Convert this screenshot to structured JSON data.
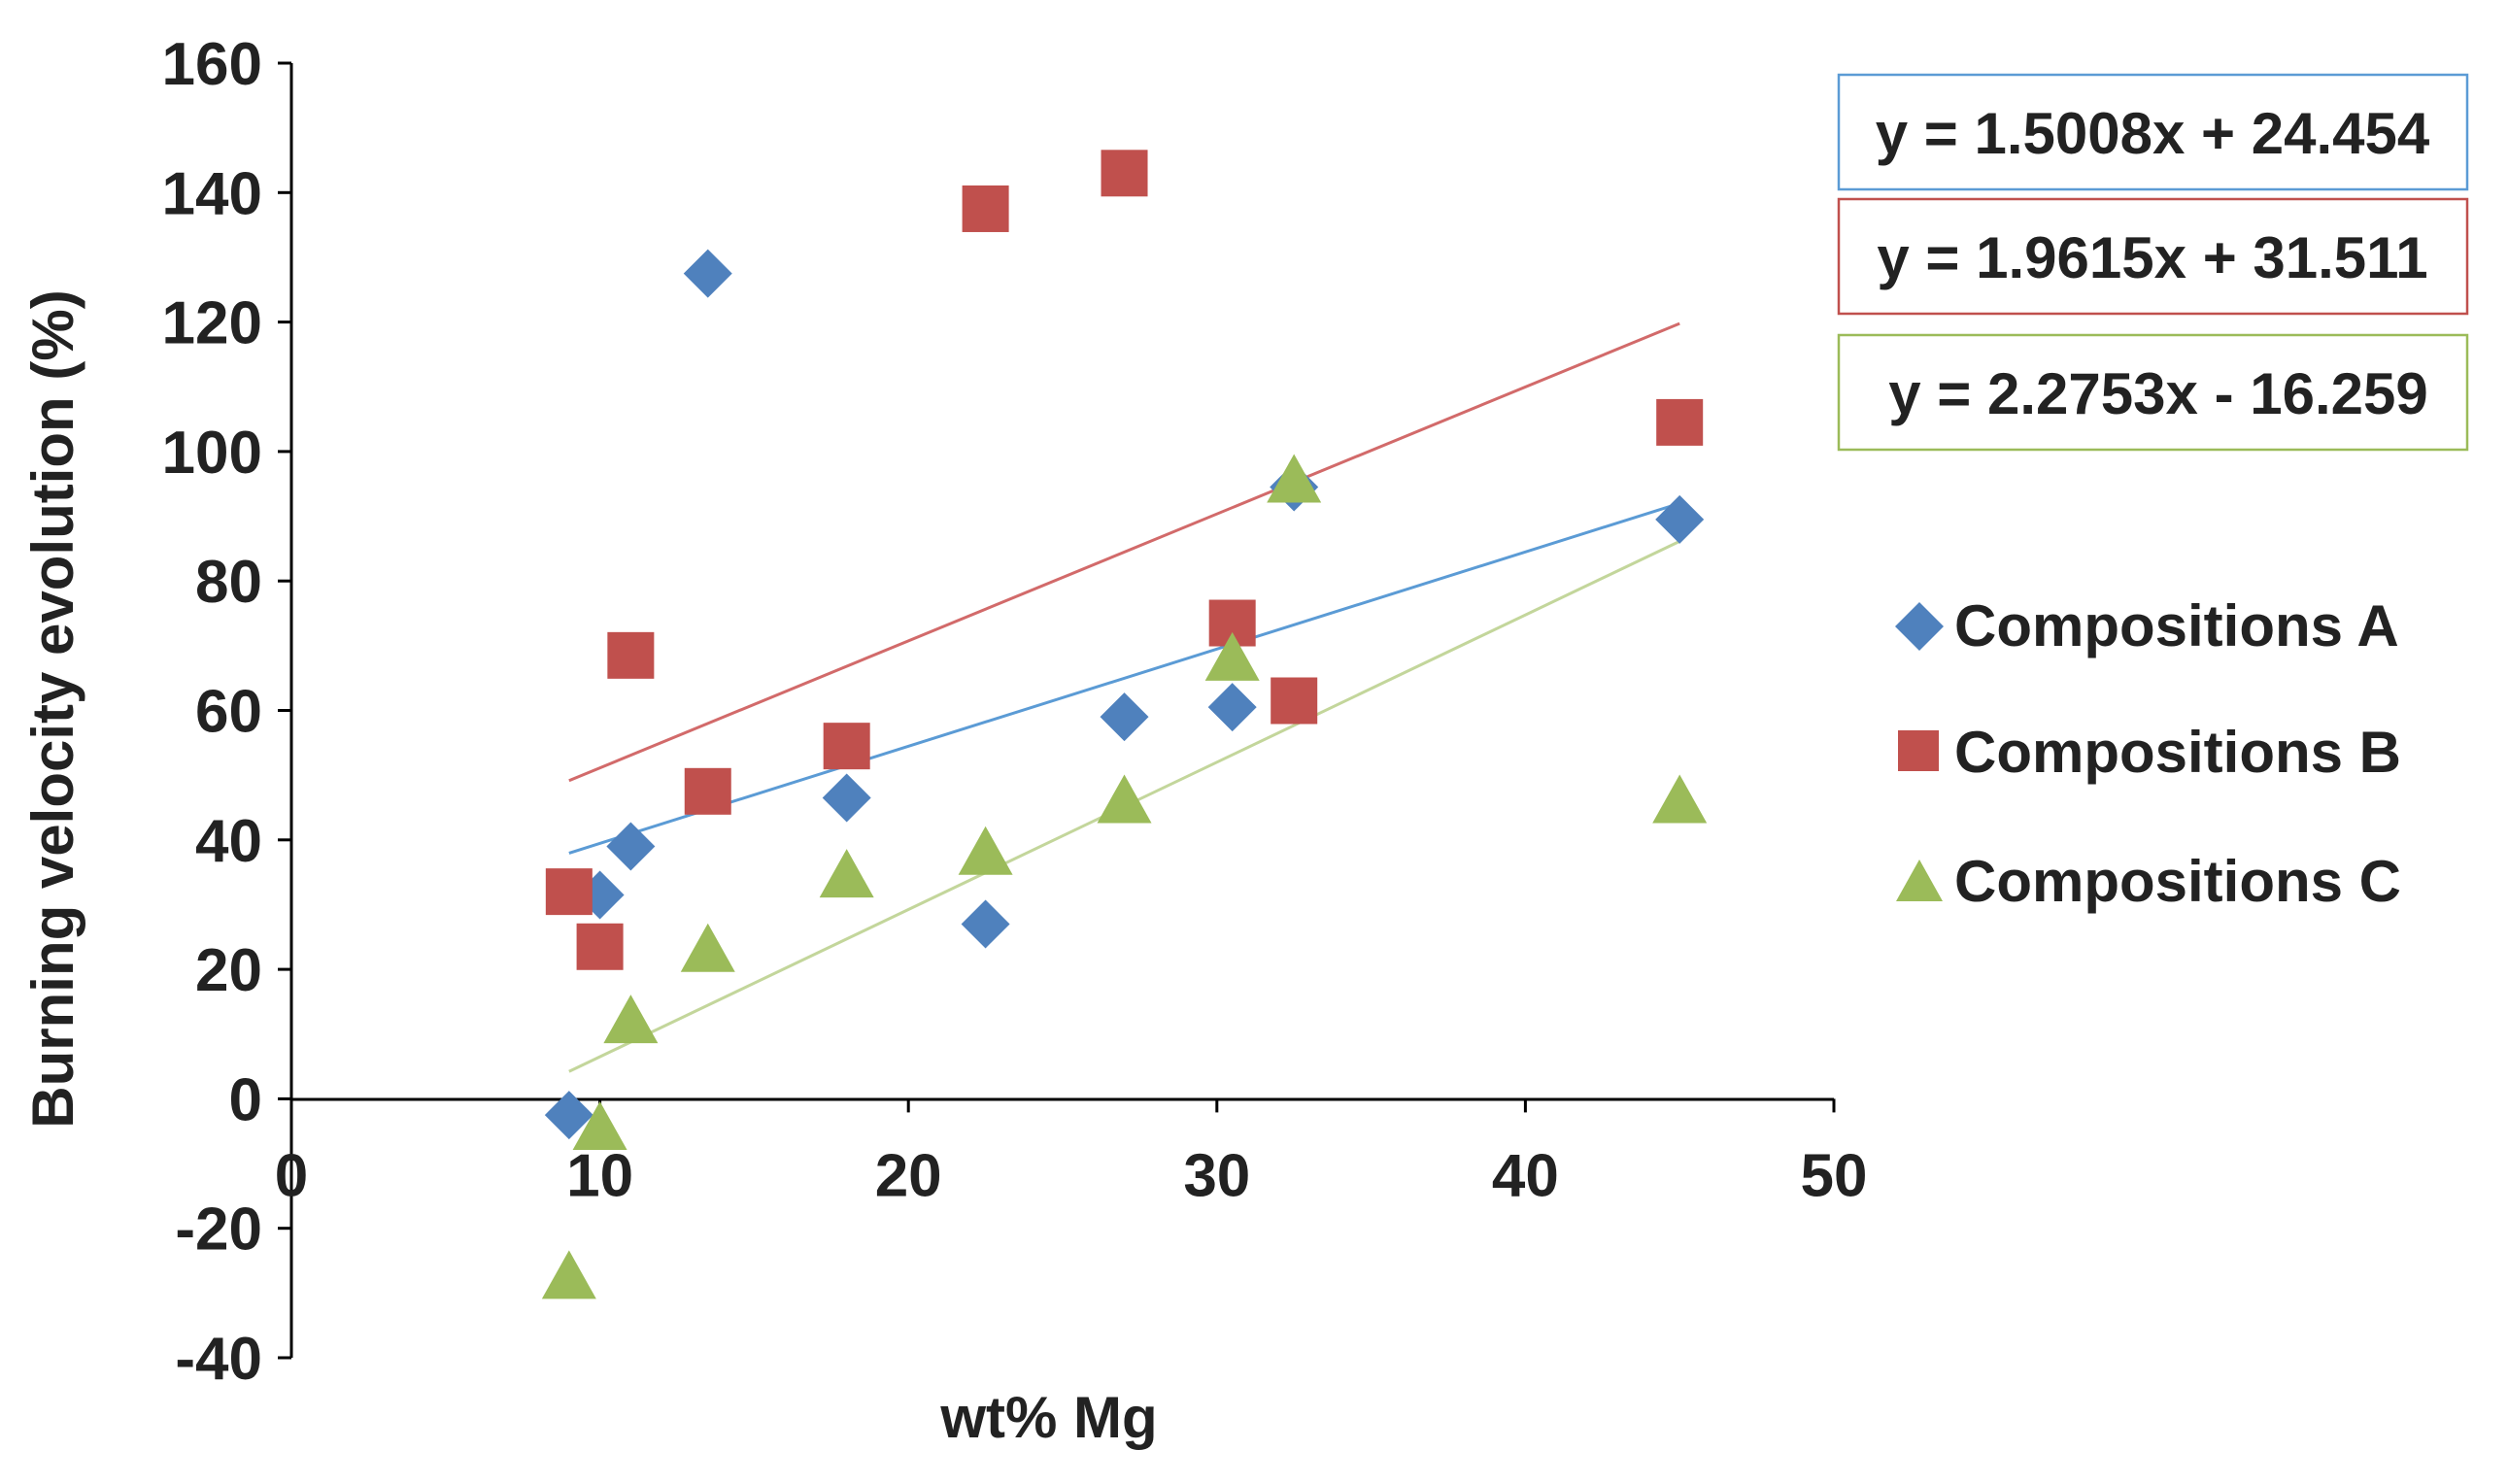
{
  "chart_data": {
    "type": "scatter",
    "title": "",
    "xlabel": "wt% Mg",
    "ylabel": "Burning velocity evolution (%)",
    "xlim": [
      0,
      50
    ],
    "ylim": [
      -40,
      160
    ],
    "x_ticks": [
      0,
      10,
      20,
      30,
      40,
      50
    ],
    "y_ticks": [
      -40,
      -20,
      0,
      20,
      40,
      60,
      80,
      100,
      120,
      140,
      160
    ],
    "grid": false,
    "legend_position": "right",
    "series": [
      {
        "name": "Compositions A",
        "marker": "diamond",
        "color": "#4F81BD",
        "trendline_color": "#5B9BD5",
        "x": [
          9,
          10,
          11,
          13.5,
          18,
          22.5,
          27,
          30.5,
          32.5,
          45
        ],
        "y": [
          -2.5,
          31.5,
          39,
          127.5,
          46.5,
          27,
          59,
          60.5,
          94.5,
          89.5
        ],
        "trendline": {
          "slope": 1.5008,
          "intercept": 24.454,
          "x_range": [
            9,
            45
          ]
        },
        "equation": "y = 1.5008x + 24.454"
      },
      {
        "name": "Compositions B",
        "marker": "square",
        "color": "#C0504D",
        "trendline_color": "#D26A6A",
        "x": [
          9,
          10,
          11,
          13.5,
          18,
          22.5,
          27,
          30.5,
          32.5,
          45
        ],
        "y": [
          32,
          23.5,
          68.5,
          47.5,
          54.5,
          137.5,
          143,
          73.5,
          61.5,
          104.5
        ],
        "trendline": {
          "slope": 1.9615,
          "intercept": 31.511,
          "x_range": [
            9,
            45
          ]
        },
        "equation": "y = 1.9615x + 31.511"
      },
      {
        "name": "Compositions C",
        "marker": "triangle",
        "color": "#9BBB59",
        "trendline_color": "#C3D69B",
        "x": [
          9,
          10,
          11,
          13.5,
          18,
          22.5,
          27,
          30.5,
          32.5,
          45
        ],
        "y": [
          -27,
          -4,
          12.5,
          23.5,
          35,
          38.5,
          46.5,
          68.5,
          96,
          46.5
        ],
        "trendline": {
          "slope": 2.2753,
          "intercept": -16.259,
          "x_range": [
            9,
            45
          ]
        },
        "equation": "y = 2.2753x - 16.259"
      }
    ]
  }
}
